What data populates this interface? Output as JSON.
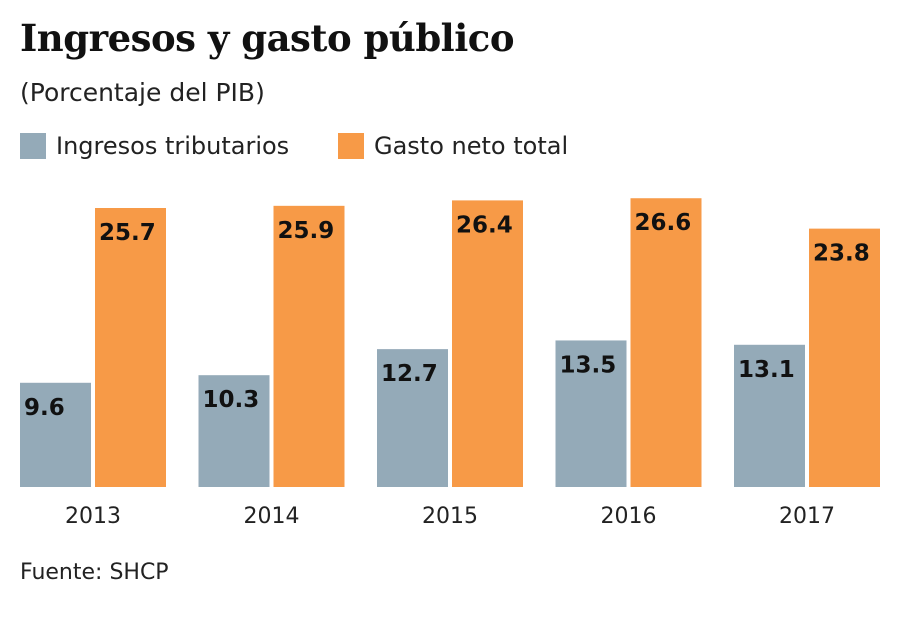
{
  "chart_data": {
    "type": "bar",
    "title": "Ingresos y gasto público",
    "subtitle": "(Porcentaje del PIB)",
    "categories": [
      "2013",
      "2014",
      "2015",
      "2016",
      "2017"
    ],
    "series": [
      {
        "name": "Ingresos tributarios",
        "color": "#94aab8",
        "values": [
          9.6,
          10.3,
          12.7,
          13.5,
          13.1
        ]
      },
      {
        "name": "Gasto neto total",
        "color": "#f79a47",
        "values": [
          25.7,
          25.9,
          26.4,
          26.6,
          23.8
        ]
      }
    ],
    "ylim": [
      0,
      26.6
    ],
    "grid": false,
    "legend": "top-left",
    "source": "Fuente: SHCP"
  }
}
